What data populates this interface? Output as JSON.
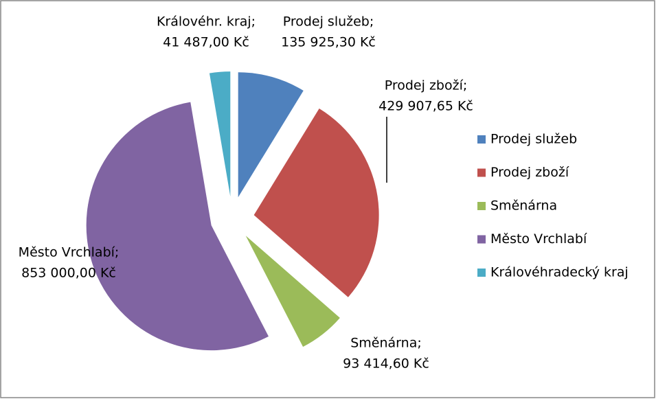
{
  "chart_data": {
    "type": "pie",
    "categories": [
      "Prodej služeb",
      "Prodej zboží",
      "Směnárna",
      "Město Vrchlabí",
      "Královéhradecký kraj"
    ],
    "values": [
      135925.3,
      429907.65,
      93414.6,
      853000.0,
      41487.0
    ],
    "label_names": [
      "Prodej služeb;",
      "Prodej zboží;",
      "Směnárna;",
      "Město Vrchlabí;",
      "Královéhr. kraj;"
    ],
    "value_labels": [
      "135 925,30 Kč",
      "429 907,65 Kč",
      "93 414,60 Kč",
      "853 000,00 Kč",
      "41 487,00 Kč"
    ],
    "colors": [
      "#4f81bd",
      "#c0504d",
      "#9bbb59",
      "#8064a2",
      "#4bacc6"
    ],
    "legend": "right"
  }
}
